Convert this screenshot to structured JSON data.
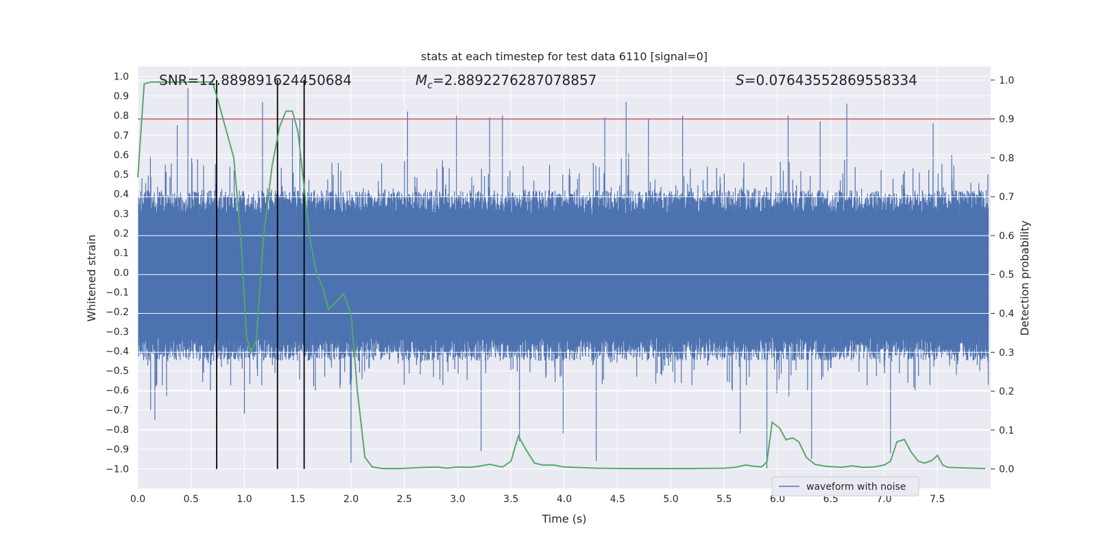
{
  "chart_data": {
    "type": "line",
    "title": "stats at each timestep for test data 6110 [signal=0]",
    "xlabel": "Time (s)",
    "ylabel_left": "Whitened strain",
    "ylabel_right": "Detection probability",
    "xlim": [
      0,
      8
    ],
    "ylim_left": [
      -1.1,
      1.05
    ],
    "ylim_right": [
      -0.05,
      1.035
    ],
    "x_ticks": [
      0.0,
      0.5,
      1.0,
      1.5,
      2.0,
      2.5,
      3.0,
      3.5,
      4.0,
      4.5,
      5.0,
      5.5,
      6.0,
      6.5,
      7.0,
      7.5
    ],
    "x_tick_labels": [
      "0.0",
      "0.5",
      "1.0",
      "1.5",
      "2.0",
      "2.5",
      "3.0",
      "3.5",
      "4.0",
      "4.5",
      "5.0",
      "5.5",
      "6.0",
      "6.5",
      "7.0",
      "7.5"
    ],
    "y_left_ticks": [
      1.0,
      0.9,
      0.8,
      0.7,
      0.6,
      0.5,
      0.4,
      0.3,
      0.2,
      0.1,
      0.0,
      -0.1,
      -0.2,
      -0.3,
      -0.4,
      -0.5,
      -0.6,
      -0.7,
      -0.8,
      -0.9,
      -1.0
    ],
    "y_left_tick_labels": [
      "1.0",
      "0.9",
      "0.8",
      "0.7",
      "0.6",
      "0.5",
      "0.4",
      "0.3",
      "0.2",
      "0.1",
      "0.0",
      "−0.1",
      "−0.2",
      "−0.3",
      "−0.4",
      "−0.5",
      "−0.6",
      "−0.7",
      "−0.8",
      "−0.9",
      "−1.0"
    ],
    "y_right_ticks": [
      1.0,
      0.9,
      0.8,
      0.7,
      0.6,
      0.5,
      0.4,
      0.3,
      0.2,
      0.1,
      0.0
    ],
    "y_right_tick_labels": [
      "1.0",
      "0.9",
      "0.8",
      "0.7",
      "0.6",
      "0.5",
      "0.4",
      "0.3",
      "0.2",
      "0.1",
      "0.0"
    ],
    "annotations": {
      "snr": "SNR=12.889891624450684",
      "mc_symbol": "M",
      "mc_sub": "c",
      "mc_value": "=2.8892276287078857",
      "s_symbol": "S",
      "s_value": "=0.07643552869558334"
    },
    "threshold": 0.9,
    "vertical_lines_x": [
      0.74,
      1.31,
      1.56
    ],
    "legend": {
      "label": "waveform with noise",
      "position": "lower-right"
    },
    "series": [
      {
        "name": "waveform with noise",
        "axis": "left",
        "color": "#4c72b0",
        "description": "noise-dominated whitened strain, approx ±0.35 typical envelope",
        "spike_peaks_x": [
          0.47,
          0.37,
          1.17,
          1.45,
          1.52,
          2.53,
          2.99,
          3.3,
          3.42,
          4.38,
          4.58,
          4.79,
          5.11,
          6.1,
          6.4,
          6.65,
          7.46
        ],
        "spike_peaks_y": [
          0.94,
          0.75,
          0.87,
          0.78,
          0.78,
          0.82,
          0.8,
          0.79,
          0.8,
          0.79,
          0.87,
          0.78,
          0.8,
          0.8,
          0.77,
          0.86,
          0.76
        ],
        "spike_troughs_x": [
          0.12,
          0.16,
          1.0,
          2.0,
          3.22,
          3.58,
          3.99,
          4.3,
          5.65,
          5.9,
          6.32,
          7.06
        ],
        "spike_troughs_y": [
          -0.7,
          -0.75,
          -0.72,
          -0.97,
          -0.91,
          -0.86,
          -0.82,
          -0.96,
          -0.82,
          -1.0,
          -0.95,
          -0.92
        ]
      },
      {
        "name": "detection probability",
        "axis": "right",
        "color": "#55a868",
        "x": [
          0.0,
          0.06,
          0.12,
          0.2,
          0.3,
          0.45,
          0.6,
          0.7,
          0.75,
          0.82,
          0.9,
          0.97,
          1.02,
          1.06,
          1.11,
          1.18,
          1.26,
          1.33,
          1.39,
          1.45,
          1.5,
          1.55,
          1.61,
          1.67,
          1.73,
          1.79,
          1.86,
          1.93,
          2.0,
          2.06,
          2.13,
          2.2,
          2.3,
          2.45,
          2.7,
          2.8,
          2.9,
          3.0,
          3.08,
          3.15,
          3.22,
          3.3,
          3.42,
          3.5,
          3.57,
          3.64,
          3.72,
          3.8,
          3.9,
          4.0,
          4.3,
          4.6,
          4.9,
          5.2,
          5.5,
          5.6,
          5.7,
          5.78,
          5.85,
          5.9,
          5.95,
          6.02,
          6.08,
          6.14,
          6.2,
          6.27,
          6.35,
          6.45,
          6.6,
          6.7,
          6.8,
          6.9,
          7.0,
          7.06,
          7.12,
          7.19,
          7.25,
          7.32,
          7.38,
          7.45,
          7.5,
          7.55,
          7.6,
          7.7,
          7.95
        ],
        "y": [
          0.75,
          0.99,
          0.995,
          0.995,
          0.995,
          0.995,
          0.995,
          0.995,
          0.95,
          0.88,
          0.8,
          0.58,
          0.34,
          0.3,
          0.33,
          0.6,
          0.78,
          0.88,
          0.92,
          0.92,
          0.87,
          0.75,
          0.6,
          0.51,
          0.47,
          0.41,
          0.43,
          0.45,
          0.4,
          0.2,
          0.03,
          0.005,
          0.001,
          0.001,
          0.004,
          0.005,
          0.002,
          0.005,
          0.004,
          0.005,
          0.008,
          0.012,
          0.005,
          0.02,
          0.085,
          0.05,
          0.015,
          0.01,
          0.01,
          0.005,
          0.002,
          0.001,
          0.001,
          0.001,
          0.002,
          0.004,
          0.01,
          0.007,
          0.005,
          0.018,
          0.12,
          0.105,
          0.075,
          0.08,
          0.07,
          0.03,
          0.012,
          0.007,
          0.004,
          0.008,
          0.004,
          0.005,
          0.01,
          0.02,
          0.07,
          0.076,
          0.045,
          0.02,
          0.015,
          0.022,
          0.035,
          0.01,
          0.004,
          0.003,
          0.001
        ]
      }
    ]
  }
}
